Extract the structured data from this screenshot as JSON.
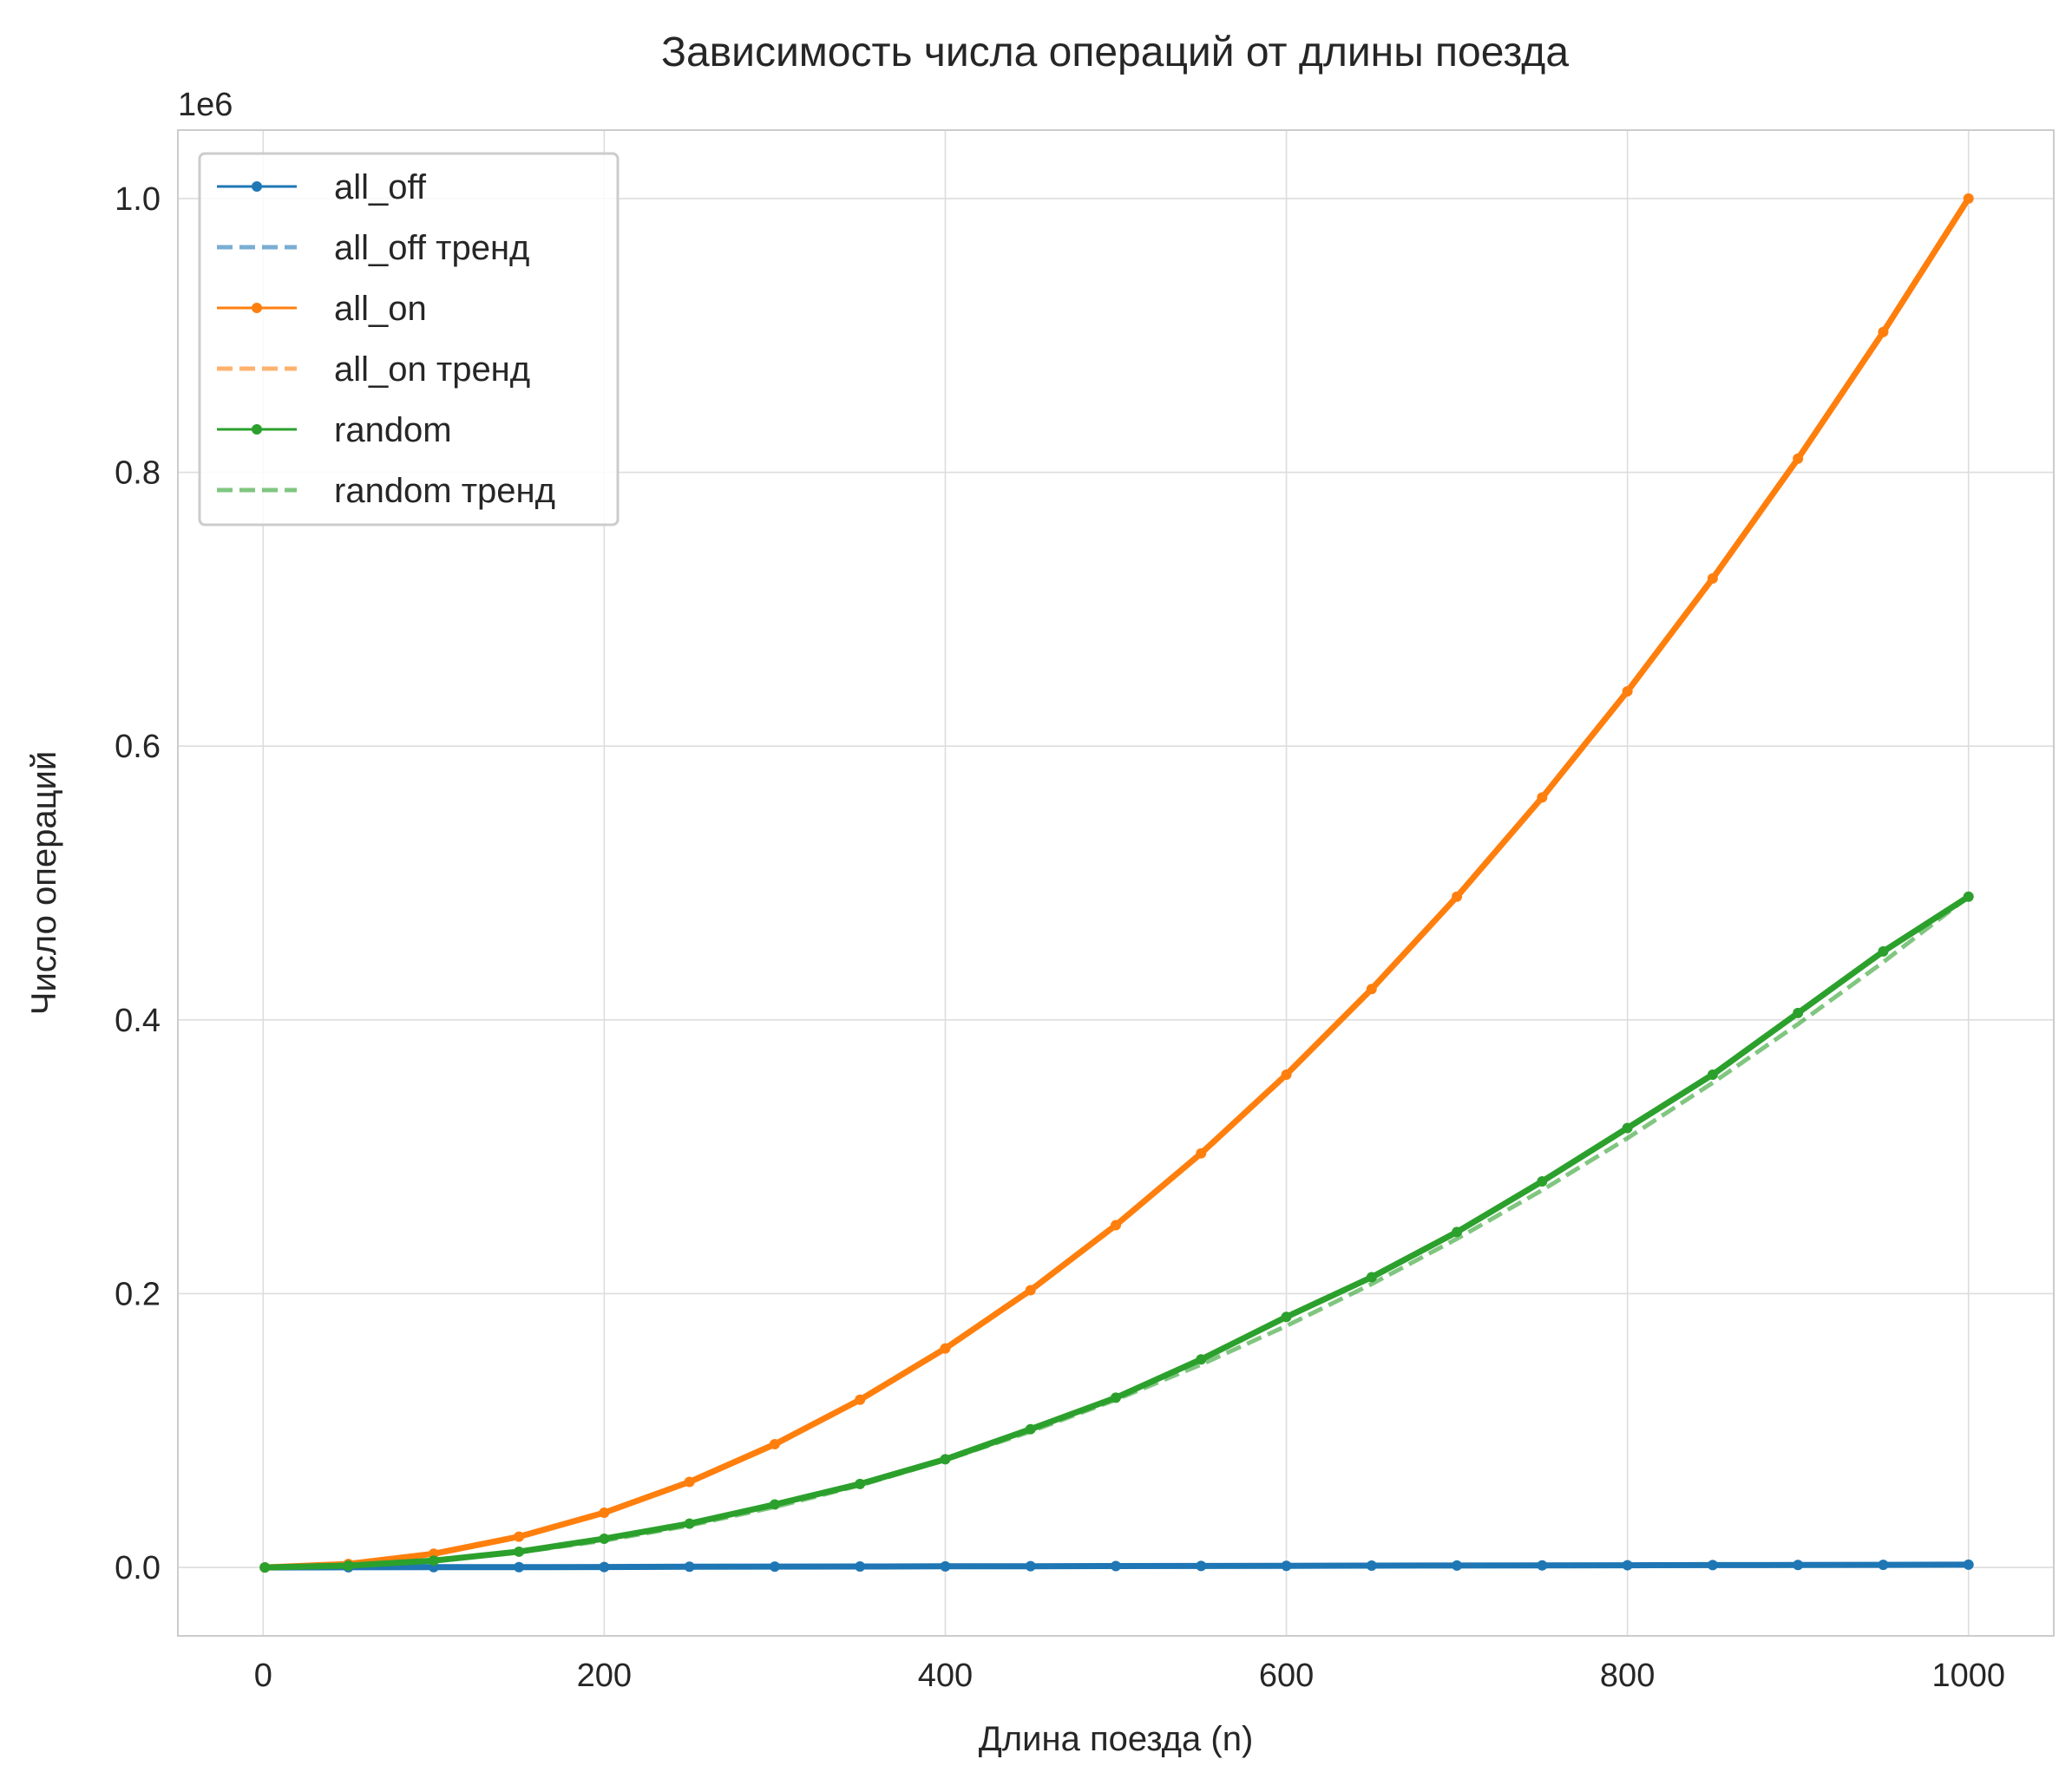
{
  "chart_data": {
    "type": "line",
    "title": "Зависимость числа операций от длины поезда",
    "xlabel": "Длина поезда (n)",
    "ylabel": "Число операций",
    "y_offset_label": "1e6",
    "xlim": [
      -50,
      1050
    ],
    "ylim": [
      -0.05,
      1.05
    ],
    "x_ticks": [
      0,
      200,
      400,
      600,
      800,
      1000
    ],
    "y_ticks": [
      0.0,
      0.2,
      0.4,
      0.6,
      0.8,
      1.0
    ],
    "x_tick_labels": [
      "0",
      "200",
      "400",
      "600",
      "800",
      "1000"
    ],
    "y_tick_labels": [
      "0.0",
      "0.2",
      "0.4",
      "0.6",
      "0.8",
      "1.0"
    ],
    "grid": true,
    "legend_position": "top-left",
    "x": [
      1,
      50,
      100,
      150,
      200,
      250,
      300,
      350,
      400,
      450,
      500,
      550,
      600,
      650,
      700,
      750,
      800,
      850,
      900,
      950,
      1000
    ],
    "series": [
      {
        "name": "all_off",
        "color": "#1f77b4",
        "values": [
          0.0,
          0.0001,
          0.0002,
          0.0002,
          0.0003,
          0.0005,
          0.0006,
          0.0007,
          0.0008,
          0.0009,
          0.001,
          0.0011,
          0.0012,
          0.0013,
          0.0014,
          0.0015,
          0.0016,
          0.0017,
          0.0018,
          0.0019,
          0.002
        ]
      },
      {
        "name": "all_off тренд",
        "color": "#1f77b4",
        "dashed": true,
        "values": [
          0.0,
          0.0001,
          0.0002,
          0.0003,
          0.0004,
          0.0005,
          0.0006,
          0.0007,
          0.0008,
          0.0009,
          0.001,
          0.0011,
          0.0012,
          0.0013,
          0.0014,
          0.0015,
          0.0016,
          0.0017,
          0.0018,
          0.0019,
          0.002
        ]
      },
      {
        "name": "all_on",
        "color": "#ff7f0e",
        "values": [
          0.0,
          0.0025,
          0.01,
          0.0225,
          0.04,
          0.0625,
          0.09,
          0.1225,
          0.16,
          0.2025,
          0.25,
          0.3025,
          0.36,
          0.4225,
          0.49,
          0.5625,
          0.64,
          0.7225,
          0.81,
          0.9025,
          1.0
        ]
      },
      {
        "name": "all_on тренд",
        "color": "#ff7f0e",
        "dashed": true,
        "values": [
          0.0,
          0.0025,
          0.01,
          0.0225,
          0.04,
          0.0625,
          0.09,
          0.1225,
          0.16,
          0.2025,
          0.25,
          0.3025,
          0.36,
          0.4225,
          0.49,
          0.5625,
          0.64,
          0.7225,
          0.81,
          0.9025,
          1.0
        ]
      },
      {
        "name": "random",
        "color": "#2ca02c",
        "values": [
          0.0,
          0.0013,
          0.005,
          0.0115,
          0.021,
          0.032,
          0.046,
          0.061,
          0.079,
          0.101,
          0.124,
          0.152,
          0.183,
          0.212,
          0.245,
          0.282,
          0.321,
          0.36,
          0.405,
          0.45,
          0.49
        ]
      },
      {
        "name": "random тренд",
        "color": "#2ca02c",
        "dashed": true,
        "values": [
          0.0,
          0.0012,
          0.0049,
          0.011,
          0.0196,
          0.0306,
          0.0441,
          0.06,
          0.0784,
          0.0992,
          0.1225,
          0.1482,
          0.1764,
          0.207,
          0.2401,
          0.2756,
          0.3136,
          0.354,
          0.3969,
          0.4422,
          0.49
        ]
      }
    ]
  }
}
